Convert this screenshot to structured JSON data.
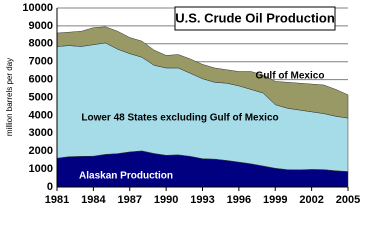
{
  "chart_data": {
    "type": "stacked_area",
    "title": "U.S. Crude Oil Production",
    "y_label": "million barrels per day",
    "x": [
      1981,
      1982,
      1983,
      1984,
      1985,
      1986,
      1987,
      1988,
      1989,
      1990,
      1991,
      1992,
      1993,
      1994,
      1995,
      1996,
      1997,
      1998,
      1999,
      2000,
      2001,
      2002,
      2003,
      2004,
      2005
    ],
    "series": [
      {
        "name": "Alaskan Production",
        "color": "#000080",
        "values": [
          1609,
          1696,
          1714,
          1722,
          1825,
          1867,
          1962,
          2017,
          1874,
          1773,
          1798,
          1714,
          1582,
          1559,
          1484,
          1393,
          1296,
          1175,
          1050,
          970,
          963,
          984,
          974,
          908,
          864
        ]
      },
      {
        "name": "Lower 48 States excluding Gulf of Mexico",
        "color": "#a6dbe8",
        "values": [
          6241,
          6204,
          6136,
          6228,
          6225,
          5833,
          5488,
          5233,
          4926,
          4877,
          4852,
          4636,
          4468,
          4291,
          4316,
          4257,
          4154,
          4075,
          3550,
          3430,
          3337,
          3216,
          3126,
          3042,
          2986
        ]
      },
      {
        "name": "Gulf of Mexico",
        "color": "#999966",
        "values": [
          750,
          750,
          850,
          950,
          900,
          1000,
          900,
          900,
          850,
          700,
          750,
          800,
          800,
          800,
          750,
          800,
          1000,
          1000,
          1300,
          1450,
          1500,
          1550,
          1600,
          1500,
          1300
        ]
      }
    ],
    "xlim": [
      1981,
      2005
    ],
    "xticks": [
      1981,
      1984,
      1987,
      1990,
      1993,
      1996,
      1999,
      2002,
      2005
    ],
    "ylim": [
      0,
      10000
    ],
    "yticks": [
      0,
      1000,
      2000,
      3000,
      4000,
      5000,
      6000,
      7000,
      8000,
      9000,
      10000
    ],
    "grid": true
  }
}
